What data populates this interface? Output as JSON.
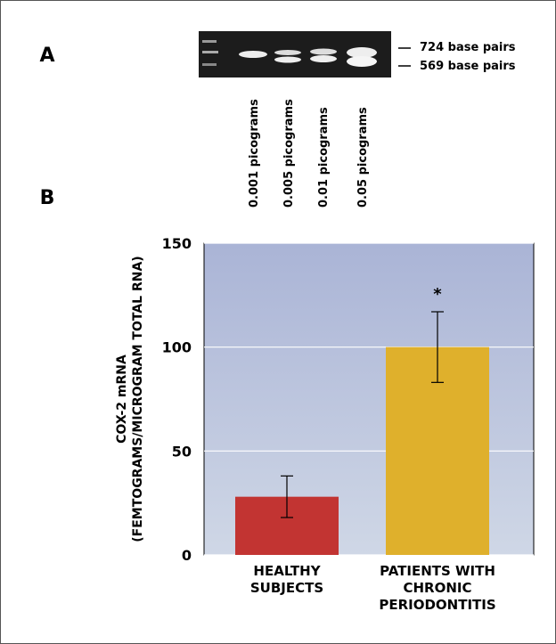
{
  "panel_a": {
    "label": "A",
    "markers": [
      "724 base pairs",
      "569 base pairs"
    ],
    "lanes": [
      "0.001 picograms",
      "0.005 picograms",
      "0.01 picograms",
      "0.05 picograms"
    ]
  },
  "chart_data": {
    "type": "bar",
    "label": "B",
    "y_label": [
      "COX-2 mRNA",
      "(FEMTOGRAMS/MICROGRAM TOTAL RNA)"
    ],
    "categories": [
      [
        "HEALTHY",
        "SUBJECTS"
      ],
      [
        "PATIENTS WITH",
        "CHRONIC",
        "PERIODONTITIS"
      ]
    ],
    "values": [
      28,
      100
    ],
    "errors": [
      10,
      17
    ],
    "colors": [
      "#c23432",
      "#dfb02c"
    ],
    "annotations": [
      "",
      "*"
    ],
    "ylim": [
      0,
      150
    ],
    "yticks": [
      0,
      50,
      100,
      150
    ],
    "grid": true
  }
}
